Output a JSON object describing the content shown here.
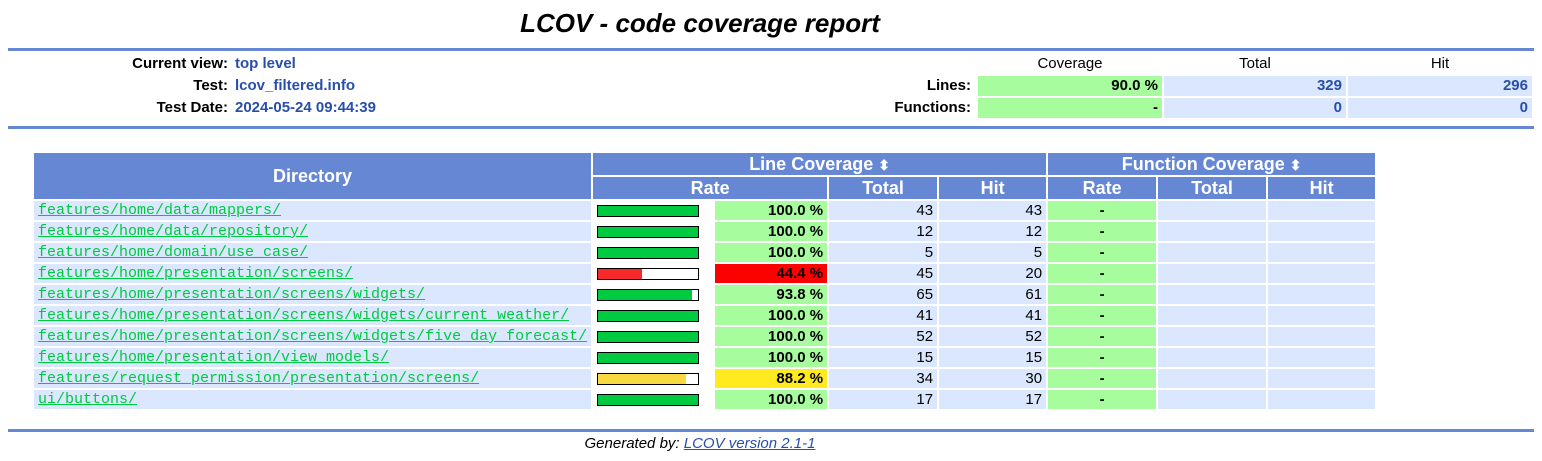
{
  "title": "LCOV - code coverage report",
  "header": {
    "current_view_label": "Current view:",
    "current_view": "top level",
    "test_label": "Test:",
    "test": "lcov_filtered.info",
    "date_label": "Test Date:",
    "date": "2024-05-24 09:44:39"
  },
  "summary": {
    "col_coverage": "Coverage",
    "col_total": "Total",
    "col_hit": "Hit",
    "lines_label": "Lines:",
    "lines_coverage": "90.0 %",
    "lines_total": "329",
    "lines_hit": "296",
    "functions_label": "Functions:",
    "functions_coverage": "-",
    "functions_total": "0",
    "functions_hit": "0"
  },
  "table": {
    "directory_header": "Directory",
    "line_coverage_header": "Line Coverage",
    "function_coverage_header": "Function Coverage",
    "sort_icon": "⬍",
    "rate_header": "Rate",
    "total_header": "Total",
    "hit_header": "Hit",
    "rows": [
      {
        "dir": "features/home/data/mappers/",
        "rate": "100.0 %",
        "pct": 100,
        "total": "43",
        "hit": "43",
        "fn_rate": "-"
      },
      {
        "dir": "features/home/data/repository/",
        "rate": "100.0 %",
        "pct": 100,
        "total": "12",
        "hit": "12",
        "fn_rate": "-"
      },
      {
        "dir": "features/home/domain/use_case/",
        "rate": "100.0 %",
        "pct": 100,
        "total": "5",
        "hit": "5",
        "fn_rate": "-"
      },
      {
        "dir": "features/home/presentation/screens/",
        "rate": "44.4 %",
        "pct": 44.4,
        "total": "45",
        "hit": "20",
        "fn_rate": "-"
      },
      {
        "dir": "features/home/presentation/screens/widgets/",
        "rate": "93.8 %",
        "pct": 93.8,
        "total": "65",
        "hit": "61",
        "fn_rate": "-"
      },
      {
        "dir": "features/home/presentation/screens/widgets/current_weather/",
        "rate": "100.0 %",
        "pct": 100,
        "total": "41",
        "hit": "41",
        "fn_rate": "-"
      },
      {
        "dir": "features/home/presentation/screens/widgets/five_day_forecast/",
        "rate": "100.0 %",
        "pct": 100,
        "total": "52",
        "hit": "52",
        "fn_rate": "-"
      },
      {
        "dir": "features/home/presentation/view_models/",
        "rate": "100.0 %",
        "pct": 100,
        "total": "15",
        "hit": "15",
        "fn_rate": "-"
      },
      {
        "dir": "features/request_permission/presentation/screens/",
        "rate": "88.2 %",
        "pct": 88.2,
        "total": "34",
        "hit": "30",
        "fn_rate": "-"
      },
      {
        "dir": "ui/buttons/",
        "rate": "100.0 %",
        "pct": 100,
        "total": "17",
        "hit": "17",
        "fn_rate": "-"
      }
    ]
  },
  "colors": {
    "high": "#00cb40",
    "high_bg": "#a7fc9d",
    "medium": "#f8d940",
    "medium_bg": "#ffea20",
    "low": "#f8292a",
    "low_bg": "#ff0000"
  },
  "footer": {
    "prefix": "Generated by:",
    "link": "LCOV version 2.1-1"
  }
}
